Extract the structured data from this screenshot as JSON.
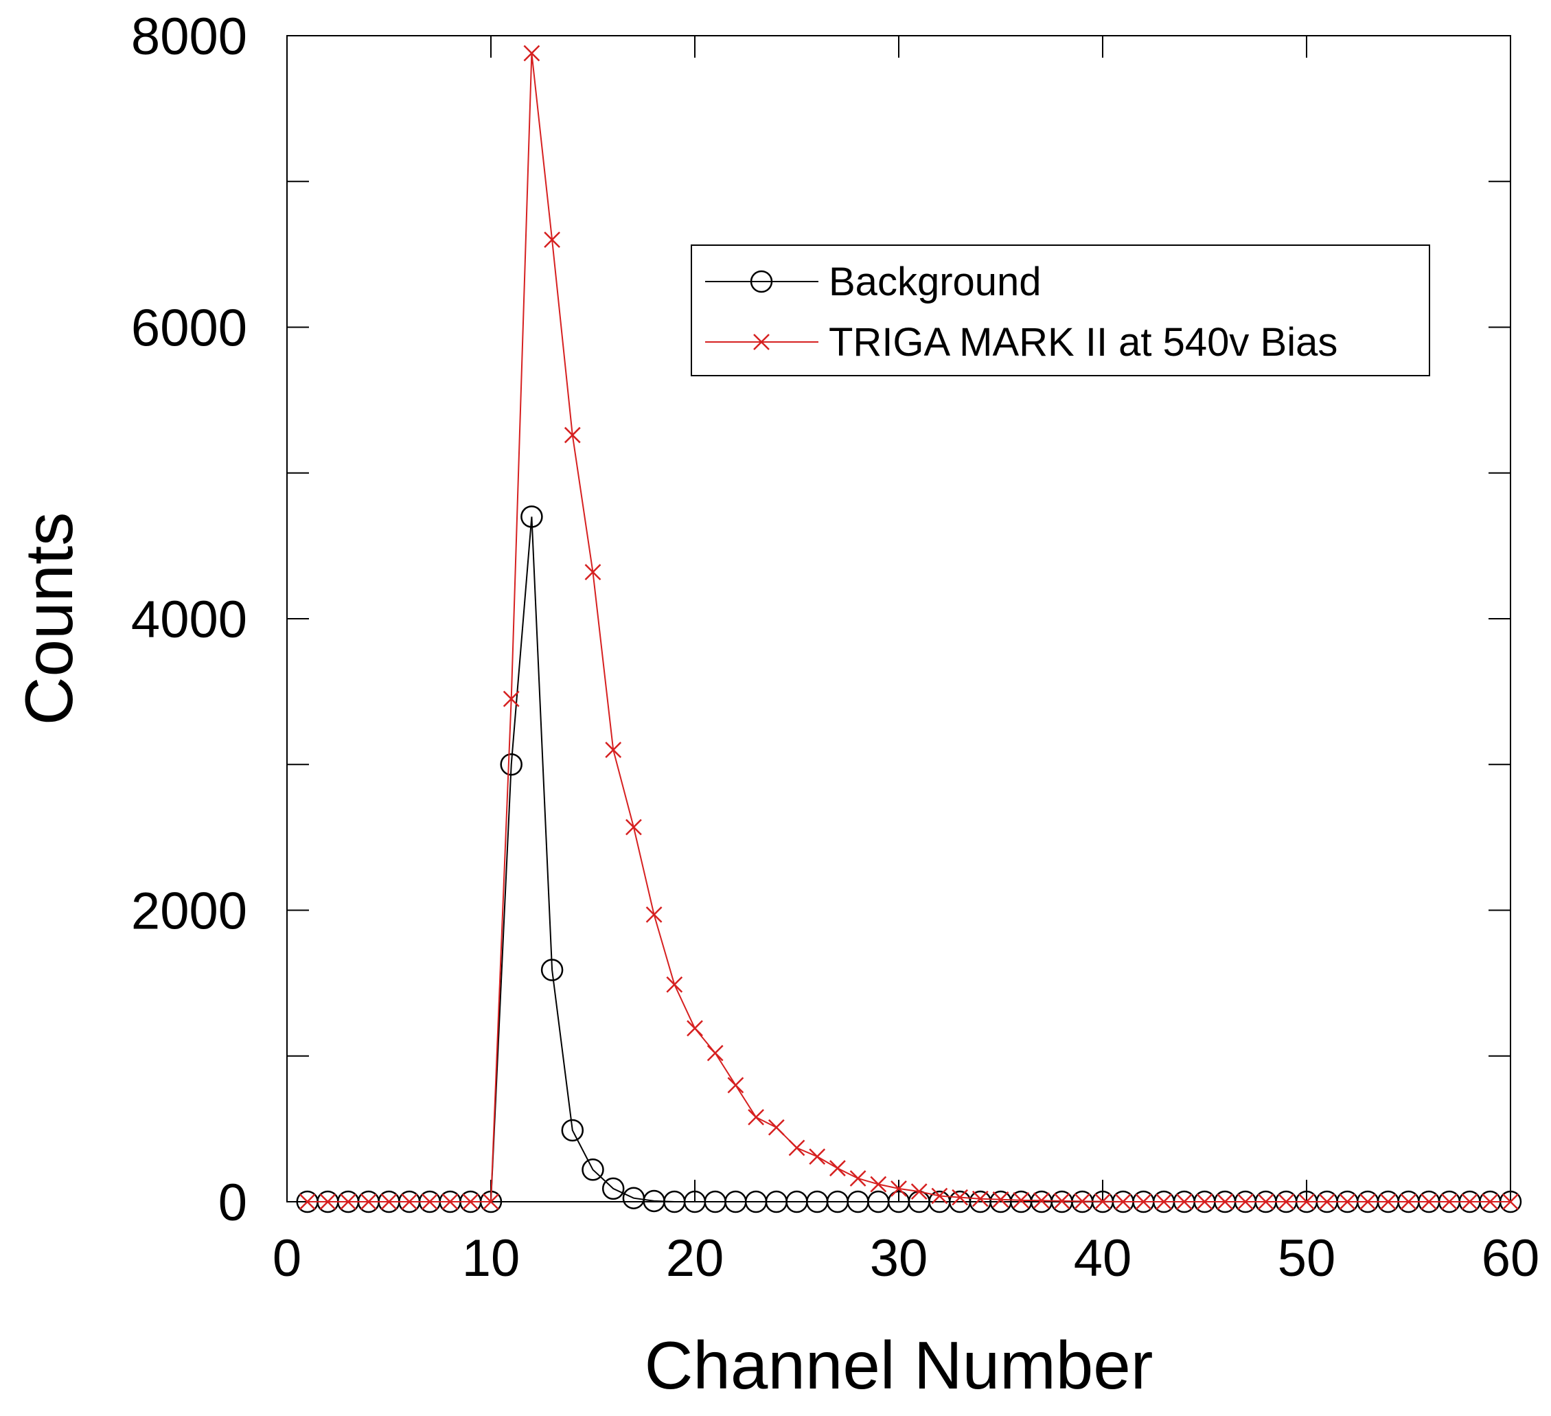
{
  "chart_data": {
    "type": "line",
    "title": "",
    "xlabel": "Channel Number",
    "ylabel": "Counts",
    "xlim": [
      0,
      60
    ],
    "ylim": [
      0,
      8000
    ],
    "x_ticks": [
      0,
      10,
      20,
      30,
      40,
      50,
      60
    ],
    "y_ticks_labeled": [
      0,
      2000,
      4000,
      6000,
      8000
    ],
    "y_ticks_minor": [
      1000,
      3000,
      5000,
      7000
    ],
    "grid": false,
    "legend_position": "upper-right",
    "x": [
      1,
      2,
      3,
      4,
      5,
      6,
      7,
      8,
      9,
      10,
      11,
      12,
      13,
      14,
      15,
      16,
      17,
      18,
      19,
      20,
      21,
      22,
      23,
      24,
      25,
      26,
      27,
      28,
      29,
      30,
      31,
      32,
      33,
      34,
      35,
      36,
      37,
      38,
      39,
      40,
      41,
      42,
      43,
      44,
      45,
      46,
      47,
      48,
      49,
      50,
      51,
      52,
      53,
      54,
      55,
      56,
      57,
      58,
      59,
      60
    ],
    "series": [
      {
        "name": "Background",
        "color": "#000000",
        "marker": "circle",
        "values": [
          0,
          0,
          0,
          0,
          0,
          0,
          0,
          0,
          0,
          0,
          3000,
          4700,
          1590,
          490,
          220,
          90,
          25,
          5,
          0,
          0,
          0,
          0,
          0,
          0,
          0,
          0,
          0,
          0,
          0,
          0,
          0,
          0,
          0,
          0,
          0,
          0,
          0,
          0,
          0,
          0,
          0,
          0,
          0,
          0,
          0,
          0,
          0,
          0,
          0,
          0,
          0,
          0,
          0,
          0,
          0,
          0,
          0,
          0,
          0,
          0
        ]
      },
      {
        "name": "TRIGA MARK II at 540v Bias",
        "color": "#d62020",
        "marker": "x",
        "values": [
          0,
          0,
          0,
          0,
          0,
          0,
          0,
          0,
          0,
          0,
          3450,
          7880,
          6600,
          5260,
          4320,
          3100,
          2570,
          1970,
          1490,
          1190,
          1020,
          800,
          580,
          510,
          370,
          310,
          230,
          160,
          120,
          90,
          70,
          40,
          30,
          20,
          15,
          10,
          8,
          5,
          3,
          2,
          0,
          0,
          0,
          0,
          0,
          0,
          0,
          0,
          0,
          0,
          0,
          0,
          0,
          0,
          0,
          0,
          0,
          0,
          0,
          0
        ]
      }
    ]
  }
}
